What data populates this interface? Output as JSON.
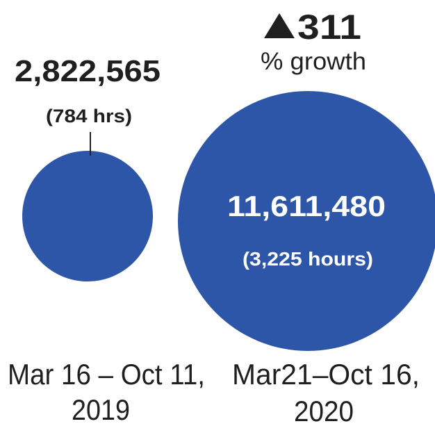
{
  "chart_data": {
    "type": "bubble",
    "color": "#2d56a8",
    "bubbles": [
      {
        "period_label_line1": "Mar 16 – Oct 11,",
        "period_label_line2": "2019",
        "value": 2822565,
        "value_label": "2,822,565",
        "hours": 784,
        "hours_label": "(784 hrs)"
      },
      {
        "period_label_line1": "Mar21–Oct 16,",
        "period_label_line2": "2020",
        "value": 11611480,
        "value_label": "11,611,480",
        "hours": 3225,
        "hours_label": "(3,225 hours)"
      }
    ],
    "growth": {
      "value": 311,
      "value_label": "311",
      "caption": "% growth",
      "arrow": "up-triangle-icon"
    }
  }
}
